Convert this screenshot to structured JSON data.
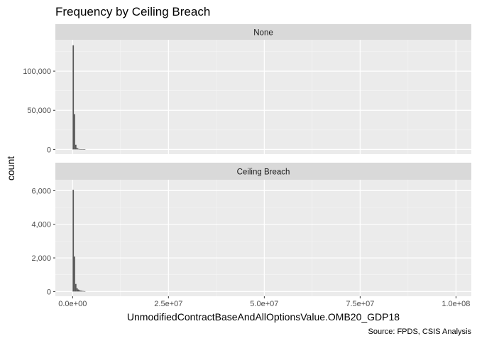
{
  "chart_data": {
    "type": "bar",
    "title": "Frequency by Ceiling Breach",
    "xlabel": "UnmodifiedContractBaseAndAllOptionsValue.OMB20_GDP18",
    "ylabel": "count",
    "caption": "Source: FPDS, CSIS Analysis",
    "xlim": [
      -4500000,
      104000000
    ],
    "x_ticks": [
      0,
      25000000,
      50000000,
      75000000,
      100000000
    ],
    "x_tick_labels": [
      "0.0e+00",
      "2.5e+07",
      "5.0e+07",
      "7.5e+07",
      "1.0e+08"
    ],
    "bin_width": 333333,
    "grid": true,
    "legend": "none",
    "bar_color": "#595959",
    "panels": [
      {
        "strip": "None",
        "ylim": [
          -6000,
          140000
        ],
        "y_ticks": [
          0,
          50000,
          100000
        ],
        "y_tick_labels": [
          "0",
          "50,000",
          "100,000"
        ],
        "bins_x": [
          0,
          333333,
          666667,
          1000000,
          1333333,
          1666667,
          2000000,
          2333333,
          2666667,
          3000000
        ],
        "counts": [
          133000,
          45000,
          6000,
          2000,
          800,
          400,
          200,
          120,
          80,
          40
        ]
      },
      {
        "strip": "Ceiling Breach",
        "ylim": [
          -280,
          6650
        ],
        "y_ticks": [
          0,
          2000,
          4000,
          6000
        ],
        "y_tick_labels": [
          "0",
          "2,000",
          "4,000",
          "6,000"
        ],
        "bins_x": [
          0,
          333333,
          666667,
          1000000,
          1333333,
          1666667,
          2000000,
          2333333,
          2666667,
          3000000
        ],
        "counts": [
          6050,
          2080,
          450,
          200,
          120,
          80,
          60,
          40,
          30,
          20
        ]
      }
    ]
  }
}
